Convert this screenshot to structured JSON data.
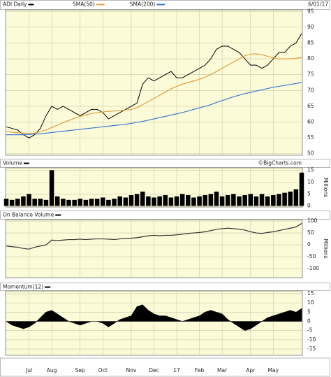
{
  "chart_data": [
    {
      "type": "line",
      "title": "ADI Daily",
      "date_label": "6/01/17",
      "categories": [
        null,
        null,
        null,
        null,
        "Jul",
        null,
        null,
        null,
        "Aug",
        null,
        null,
        null,
        null,
        "Sep",
        null,
        null,
        null,
        "Oct",
        null,
        null,
        null,
        null,
        "Nov",
        null,
        null,
        null,
        "Dec",
        null,
        null,
        null,
        "17",
        null,
        null,
        null,
        "Feb",
        null,
        null,
        null,
        "Mar",
        null,
        null,
        null,
        null,
        "Apr",
        null,
        null,
        null,
        "May",
        null,
        null,
        null,
        null,
        null
      ],
      "series": [
        {
          "color": "#000000",
          "values": [
            58.5,
            58,
            57.5,
            56,
            55,
            56,
            58,
            62,
            65,
            64,
            65,
            64,
            63,
            62,
            63,
            64,
            64,
            63,
            61,
            62,
            63,
            64,
            65,
            66,
            72,
            74,
            73,
            74,
            75,
            76,
            74,
            74,
            75,
            76,
            77,
            78,
            80,
            83,
            84,
            84,
            83,
            82,
            80,
            78,
            78,
            77,
            78,
            80,
            82,
            82,
            84,
            85,
            88
          ]
        },
        {
          "name": "SMA(50)",
          "color": "#e0a040",
          "values": [
            57,
            56.8,
            56.6,
            56.5,
            56.4,
            56.5,
            57,
            57.5,
            58.3,
            59,
            59.8,
            60.5,
            61.2,
            61.8,
            62.3,
            62.7,
            63,
            63.2,
            63.4,
            63.5,
            63.6,
            63.8,
            64,
            64.5,
            65.5,
            66.5,
            67.5,
            68.5,
            69.5,
            70.5,
            71.3,
            72,
            72.5,
            73,
            73.5,
            74.2,
            75,
            76,
            77,
            78,
            79,
            80,
            81,
            81.5,
            81.6,
            81.3,
            80.8,
            80.3,
            80,
            80,
            80,
            80.2,
            80.4
          ]
        },
        {
          "name": "SMA(200)",
          "color": "#3a7ad0",
          "values": [
            56,
            56,
            56,
            56,
            56.1,
            56.2,
            56.3,
            56.5,
            56.7,
            56.9,
            57.1,
            57.3,
            57.5,
            57.7,
            57.9,
            58.1,
            58.3,
            58.5,
            58.7,
            58.9,
            59.1,
            59.3,
            59.6,
            59.9,
            60.2,
            60.6,
            61,
            61.4,
            61.8,
            62.2,
            62.6,
            63,
            63.5,
            64,
            64.5,
            65,
            65.5,
            66.2,
            66.8,
            67.4,
            68,
            68.5,
            69,
            69.4,
            69.8,
            70.2,
            70.6,
            71,
            71.3,
            71.6,
            71.9,
            72.2,
            72.5
          ]
        }
      ],
      "ylim": [
        49.5,
        95.5
      ],
      "yticks": [
        95,
        90,
        85,
        80,
        75,
        70,
        65,
        60,
        55,
        50
      ],
      "grid": true
    },
    {
      "type": "bar",
      "title": "Volume",
      "watermark": "©BigCharts.com",
      "y_label": "Millions",
      "color": "#000000",
      "values": [
        3,
        2.5,
        3,
        4,
        5,
        3,
        3,
        2.5,
        15,
        4,
        3,
        2.5,
        2.5,
        3,
        2.5,
        3,
        3,
        3.5,
        2.5,
        3,
        4,
        3.5,
        4.5,
        5,
        6,
        4,
        3.5,
        4,
        4.5,
        3.5,
        4,
        5,
        4.5,
        3.5,
        4,
        4.5,
        5,
        6,
        4,
        4.5,
        5,
        4,
        4.5,
        5,
        4,
        5,
        4,
        4.5,
        5,
        5.5,
        6,
        7,
        14
      ],
      "ylim": [
        -0.5,
        16
      ],
      "yticks": [
        15,
        10,
        5,
        0
      ],
      "grid": true
    },
    {
      "type": "line",
      "title": "On Balance Volume",
      "y_label": "Millions",
      "series": [
        {
          "color": "#333333",
          "values": [
            -5,
            -8,
            -10,
            -15,
            -18,
            -10,
            -5,
            0,
            20,
            18,
            20,
            22,
            22,
            24,
            22,
            24,
            25,
            25,
            24,
            22,
            25,
            27,
            28,
            30,
            34,
            38,
            40,
            38,
            40,
            40,
            42,
            45,
            48,
            50,
            52,
            55,
            60,
            65,
            68,
            70,
            68,
            66,
            62,
            55,
            50,
            48,
            52,
            55,
            60,
            65,
            70,
            75,
            90
          ]
        }
      ],
      "ylim": [
        -138,
        106
      ],
      "yticks": [
        100,
        50,
        0,
        -50,
        -100
      ],
      "grid": true
    },
    {
      "type": "area",
      "title": "Momentum(12)",
      "color": "#000000",
      "values": [
        0,
        -2,
        -3,
        -4,
        -3,
        -1,
        2,
        5,
        6,
        4,
        2,
        0,
        -1,
        -2,
        -1,
        0,
        0,
        -1,
        -3,
        -1,
        1,
        2,
        3,
        8,
        9,
        6,
        4,
        3,
        3,
        2,
        1,
        0,
        1,
        2,
        3,
        5,
        6,
        5,
        4,
        1,
        -1,
        -3,
        -5,
        -4,
        -2,
        0,
        2,
        3,
        4,
        5,
        6,
        5,
        7
      ],
      "ylim": [
        -18.4,
        16.5
      ],
      "yticks": [
        15,
        10,
        5,
        0,
        -5,
        -10,
        -15
      ],
      "grid": true
    }
  ]
}
